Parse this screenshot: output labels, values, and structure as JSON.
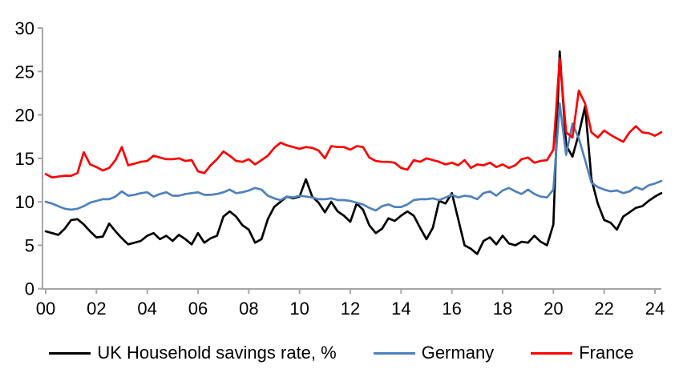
{
  "chart_data": {
    "type": "line",
    "title": "",
    "xlabel": "",
    "ylabel": "",
    "x_unit": "quarterly, years 2000 - 2024 Q2",
    "x_start_year": 2000,
    "x_step_years": 0.25,
    "x_tick_labels": [
      "00",
      "02",
      "04",
      "06",
      "08",
      "10",
      "12",
      "14",
      "16",
      "18",
      "20",
      "22",
      "24"
    ],
    "x_tick_years": [
      2000,
      2002,
      2004,
      2006,
      2008,
      2010,
      2012,
      2014,
      2016,
      2018,
      2020,
      2022,
      2024
    ],
    "ylim": [
      0,
      30
    ],
    "y_ticks": [
      0,
      5,
      10,
      15,
      20,
      25,
      30
    ],
    "grid": false,
    "legend_position": "bottom",
    "axis_color": "#A6A6A6",
    "label_color": "#000000",
    "series": [
      {
        "name": "UK Household savings rate, %",
        "color": "#000000",
        "values": [
          6.6,
          6.4,
          6.2,
          6.9,
          7.9,
          8.0,
          7.4,
          6.6,
          5.9,
          6.0,
          7.5,
          6.6,
          5.8,
          5.1,
          5.3,
          5.5,
          6.1,
          6.4,
          5.7,
          6.1,
          5.5,
          6.2,
          5.7,
          5.1,
          6.4,
          5.3,
          5.8,
          6.1,
          8.3,
          8.9,
          8.3,
          7.3,
          6.8,
          5.3,
          5.7,
          8.0,
          9.4,
          10.0,
          10.6,
          10.4,
          10.6,
          12.6,
          10.6,
          9.9,
          8.8,
          10.0,
          8.9,
          8.4,
          7.7,
          9.8,
          9.1,
          7.3,
          6.4,
          6.9,
          8.1,
          7.8,
          8.4,
          8.9,
          8.4,
          7.0,
          5.7,
          7.0,
          10.1,
          9.8,
          11.0,
          8.0,
          5.0,
          4.6,
          4.0,
          5.5,
          5.9,
          5.1,
          6.1,
          5.2,
          5.0,
          5.4,
          5.3,
          6.1,
          5.4,
          5.0,
          7.4,
          27.3,
          16.5,
          15.2,
          17.8,
          21.0,
          12.6,
          9.8,
          7.9,
          7.6,
          6.8,
          8.3,
          8.8,
          9.3,
          9.5,
          10.1,
          10.6,
          11.0
        ]
      },
      {
        "name": "Germany",
        "color": "#4E81BD",
        "values": [
          10.0,
          9.8,
          9.5,
          9.2,
          9.1,
          9.2,
          9.5,
          9.9,
          10.1,
          10.3,
          10.3,
          10.6,
          11.2,
          10.7,
          10.8,
          11.0,
          11.1,
          10.6,
          10.9,
          11.1,
          10.7,
          10.7,
          10.9,
          11.0,
          11.1,
          10.8,
          10.8,
          10.9,
          11.1,
          11.4,
          11.0,
          11.1,
          11.3,
          11.6,
          11.4,
          10.7,
          10.4,
          10.2,
          10.6,
          10.5,
          10.7,
          10.6,
          10.5,
          10.3,
          10.3,
          10.4,
          10.2,
          10.2,
          10.1,
          9.9,
          9.7,
          9.3,
          9.0,
          9.5,
          9.7,
          9.4,
          9.4,
          9.7,
          10.2,
          10.3,
          10.3,
          10.4,
          10.2,
          10.5,
          10.8,
          10.5,
          10.7,
          10.6,
          10.3,
          11.0,
          11.2,
          10.7,
          11.3,
          11.6,
          11.2,
          10.9,
          11.4,
          10.9,
          10.6,
          10.5,
          11.4,
          21.3,
          15.4,
          19.0,
          17.3,
          14.8,
          12.2,
          11.7,
          11.4,
          11.2,
          11.3,
          11.0,
          11.2,
          11.7,
          11.4,
          11.9,
          12.1,
          12.4
        ]
      },
      {
        "name": "France",
        "color": "#FF0000",
        "values": [
          13.2,
          12.8,
          12.9,
          13.0,
          13.0,
          13.3,
          15.7,
          14.3,
          14.0,
          13.6,
          13.9,
          14.8,
          16.3,
          14.2,
          14.4,
          14.6,
          14.7,
          15.3,
          15.1,
          14.9,
          14.9,
          15.0,
          14.7,
          14.8,
          13.5,
          13.3,
          14.2,
          14.9,
          15.8,
          15.3,
          14.7,
          14.6,
          14.9,
          14.3,
          14.8,
          15.3,
          16.2,
          16.8,
          16.5,
          16.3,
          16.1,
          16.3,
          16.2,
          15.9,
          15.0,
          16.4,
          16.3,
          16.3,
          16.0,
          16.4,
          16.3,
          15.1,
          14.7,
          14.6,
          14.6,
          14.5,
          13.9,
          13.7,
          14.8,
          14.6,
          15.0,
          14.8,
          14.6,
          14.3,
          14.5,
          14.2,
          14.8,
          13.9,
          14.3,
          14.2,
          14.5,
          14.0,
          14.3,
          13.9,
          14.2,
          14.9,
          15.1,
          14.5,
          14.7,
          14.8,
          16.0,
          26.5,
          18.0,
          17.4,
          22.8,
          21.3,
          18.0,
          17.4,
          18.2,
          17.7,
          17.3,
          16.9,
          18.0,
          18.7,
          18.0,
          17.9,
          17.6,
          18.0
        ]
      }
    ]
  },
  "legend": {
    "items": [
      {
        "label": "UK Household savings rate, %"
      },
      {
        "label": "Germany"
      },
      {
        "label": "France"
      }
    ]
  }
}
